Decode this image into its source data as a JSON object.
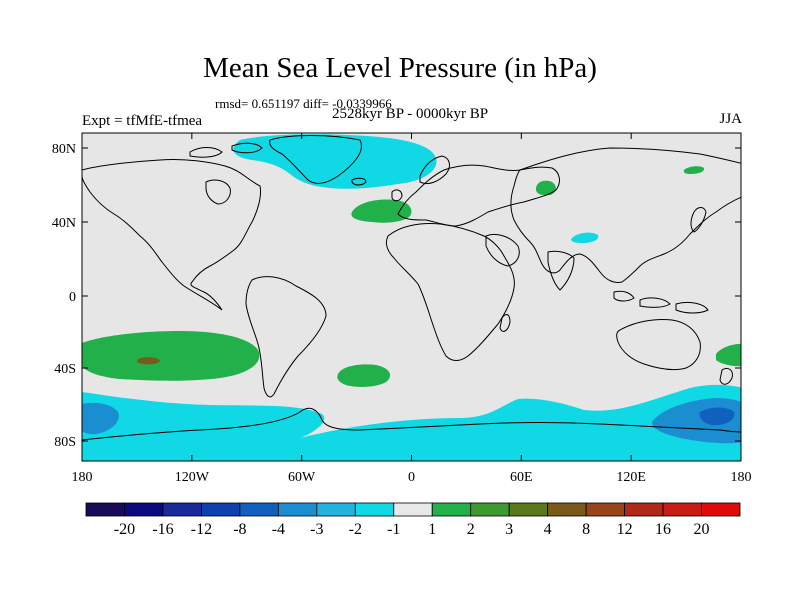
{
  "title": "Mean Sea Level Pressure (in hPa)",
  "stats_line": "rmsd= 0.651197 diff= -0.0339966",
  "period_line": "2528kyr BP - 0000kyr BP",
  "experiment_label": "Expt = tfMfE-tfmea",
  "season_label": "JJA",
  "map": {
    "lon_ticks": [
      "180",
      "120W",
      "60W",
      "0",
      "60E",
      "120E",
      "180"
    ],
    "lat_ticks": [
      "80N",
      "40N",
      "0",
      "40S",
      "80S"
    ],
    "background_color": "#e6e6e6",
    "coastline_color": "#000000"
  },
  "colorbar": {
    "labels": [
      "-20",
      "-16",
      "-12",
      "-8",
      "-4",
      "-3",
      "-2",
      "-1",
      "1",
      "2",
      "3",
      "4",
      "8",
      "12",
      "16",
      "20"
    ],
    "colors": [
      "#1a0a5a",
      "#0a0a80",
      "#1a2a9a",
      "#1040b0",
      "#1060c0",
      "#1a8ed0",
      "#22b4e0",
      "#10d8e4",
      "#e8e8e8",
      "#22b04a",
      "#3c9a2e",
      "#5a7a1a",
      "#7a5a1a",
      "#964418",
      "#b02818",
      "#c81c14",
      "#e00c0c"
    ]
  }
}
